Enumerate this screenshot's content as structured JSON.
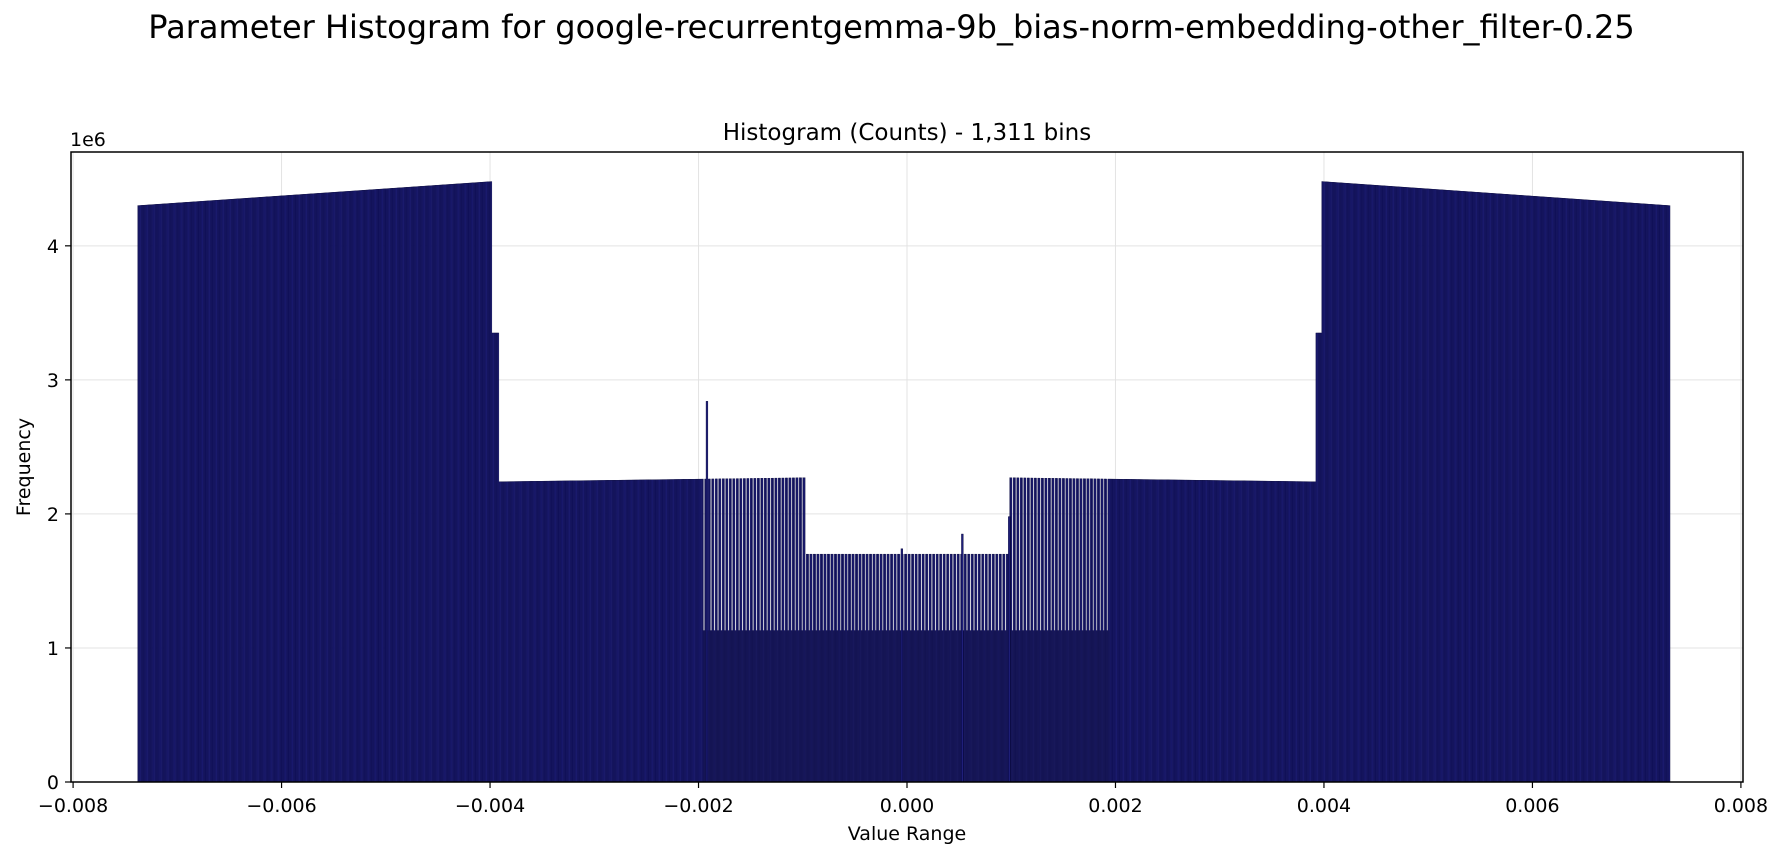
{
  "figure_title": "Parameter Histogram for google-recurrentgemma-9b_bias-norm-embedding-other_filter-0.25",
  "chart_data": {
    "type": "bar",
    "title": "Histogram (Counts) - 1,311 bins",
    "xlabel": "Value Range",
    "ylabel": "Frequency",
    "y_offset_label": "1e6",
    "xlim": [
      -0.00802,
      0.00802
    ],
    "ylim": [
      0,
      4700000
    ],
    "grid": true,
    "bar_color": "#1f1f7a",
    "bar_edge_color": "#000033",
    "x_ticks": [
      -0.008,
      -0.006,
      -0.004,
      -0.002,
      0.0,
      0.002,
      0.004,
      0.006,
      0.008
    ],
    "x_tick_labels": [
      "−0.008",
      "−0.006",
      "−0.004",
      "−0.002",
      "0.000",
      "0.002",
      "0.004",
      "0.006",
      "0.008"
    ],
    "y_ticks": [
      0,
      1000000,
      2000000,
      3000000,
      4000000
    ],
    "y_tick_labels": [
      "0",
      "1",
      "2",
      "3",
      "4"
    ],
    "bin_count": 1311,
    "value_range": [
      -0.00738,
      0.00732
    ],
    "profile": [
      {
        "from": -0.00738,
        "to": -0.00398,
        "start_value": 4300000,
        "end_value": 4480000
      },
      {
        "from": -0.00398,
        "to": -0.00392,
        "start_value": 3350000,
        "end_value": 3350000
      },
      {
        "from": -0.00392,
        "to": -0.00098,
        "start_value": 2240000,
        "end_value": 2270000
      },
      {
        "from": -0.00098,
        "to": 0.00098,
        "start_value": 1700000,
        "end_value": 1700000
      },
      {
        "from": 0.00098,
        "to": 0.00392,
        "start_value": 2270000,
        "end_value": 2240000
      },
      {
        "from": 0.00392,
        "to": 0.00398,
        "start_value": 3350000,
        "end_value": 3350000
      },
      {
        "from": 0.00398,
        "to": 0.00732,
        "start_value": 4480000,
        "end_value": 4300000
      }
    ],
    "low_fill": {
      "from": -0.00195,
      "to": 0.00195,
      "value": 1130000
    },
    "spikes": [
      {
        "x": -0.00192,
        "value": 2840000
      },
      {
        "x": 0.00053,
        "value": 1850000
      },
      {
        "x": 0.00098,
        "value": 1980000
      },
      {
        "x": -5e-05,
        "value": 1740000
      }
    ]
  }
}
